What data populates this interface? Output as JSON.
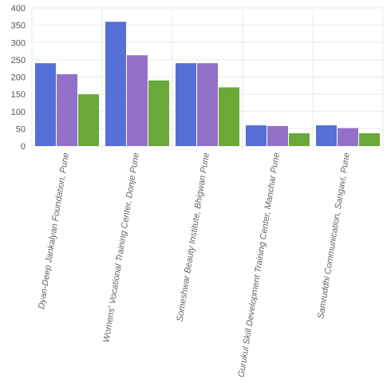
{
  "chart_data": {
    "type": "bar",
    "categories": [
      "Dyan-Deep Jankalyan Foundation, Pune",
      "Womens' Vocational Training Center, Donje Pune",
      "Someshwar Beauty Institute, Bhigwan Pune",
      "Gurukul Skill Development Training Center, Manchar Pune",
      "Samruddhi Communication, Sangavi, Pune"
    ],
    "series": [
      {
        "color": "#5470d6",
        "values": [
          240,
          360,
          240,
          60,
          60
        ]
      },
      {
        "color": "#9370c8",
        "values": [
          208,
          263,
          240,
          58,
          52
        ]
      },
      {
        "color": "#6aa83a",
        "values": [
          150,
          190,
          170,
          37,
          37
        ]
      }
    ],
    "ylim": [
      0,
      400
    ],
    "yticks": [
      0,
      50,
      100,
      150,
      200,
      250,
      300,
      350,
      400
    ],
    "grid": true
  }
}
